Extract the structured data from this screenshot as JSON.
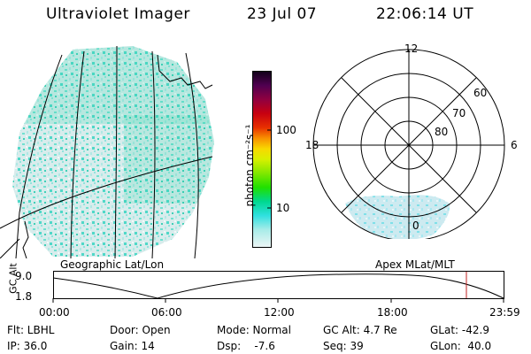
{
  "header": {
    "instrument": "Ultraviolet Imager",
    "date": "23 Jul 07",
    "time": "22:06:14 UT"
  },
  "colorbar": {
    "label": "photon cm⁻²s⁻¹",
    "ticks": [
      "100",
      "10"
    ],
    "colors": [
      "#1a0020",
      "#5a0050",
      "#8a0040",
      "#b00018",
      "#d80000",
      "#f04000",
      "#f89000",
      "#f8d800",
      "#d8f000",
      "#90e800",
      "#38e000",
      "#00d880",
      "#30e0e0",
      "#a8ece8",
      "#e8f4f4"
    ]
  },
  "polar": {
    "mlt_labels": {
      "top": "12",
      "left": "18",
      "right": "6",
      "bottom": "0"
    },
    "lat_labels": [
      "60",
      "70",
      "80"
    ]
  },
  "timeline": {
    "left_title": "Geographic Lat/Lon",
    "right_title": "Apex MLat/MLT",
    "axis_label": "GC Alt",
    "y_ticks": [
      "9.0",
      "1.8"
    ],
    "x_ticks": [
      "00:00",
      "06:00",
      "12:00",
      "18:00",
      "23:59"
    ]
  },
  "info": {
    "filter": "Flt: LBHL",
    "door": "Door: Open",
    "mode": "Mode: Normal",
    "gc_alt": "GC Alt: 4.7 Re",
    "glat": "GLat: -42.9",
    "ip": "IP: 36.0",
    "gain": "Gain: 14",
    "dsp": "Dsp:    -7.6",
    "seq": "Seq: 39",
    "glon": "GLon:  40.0"
  }
}
